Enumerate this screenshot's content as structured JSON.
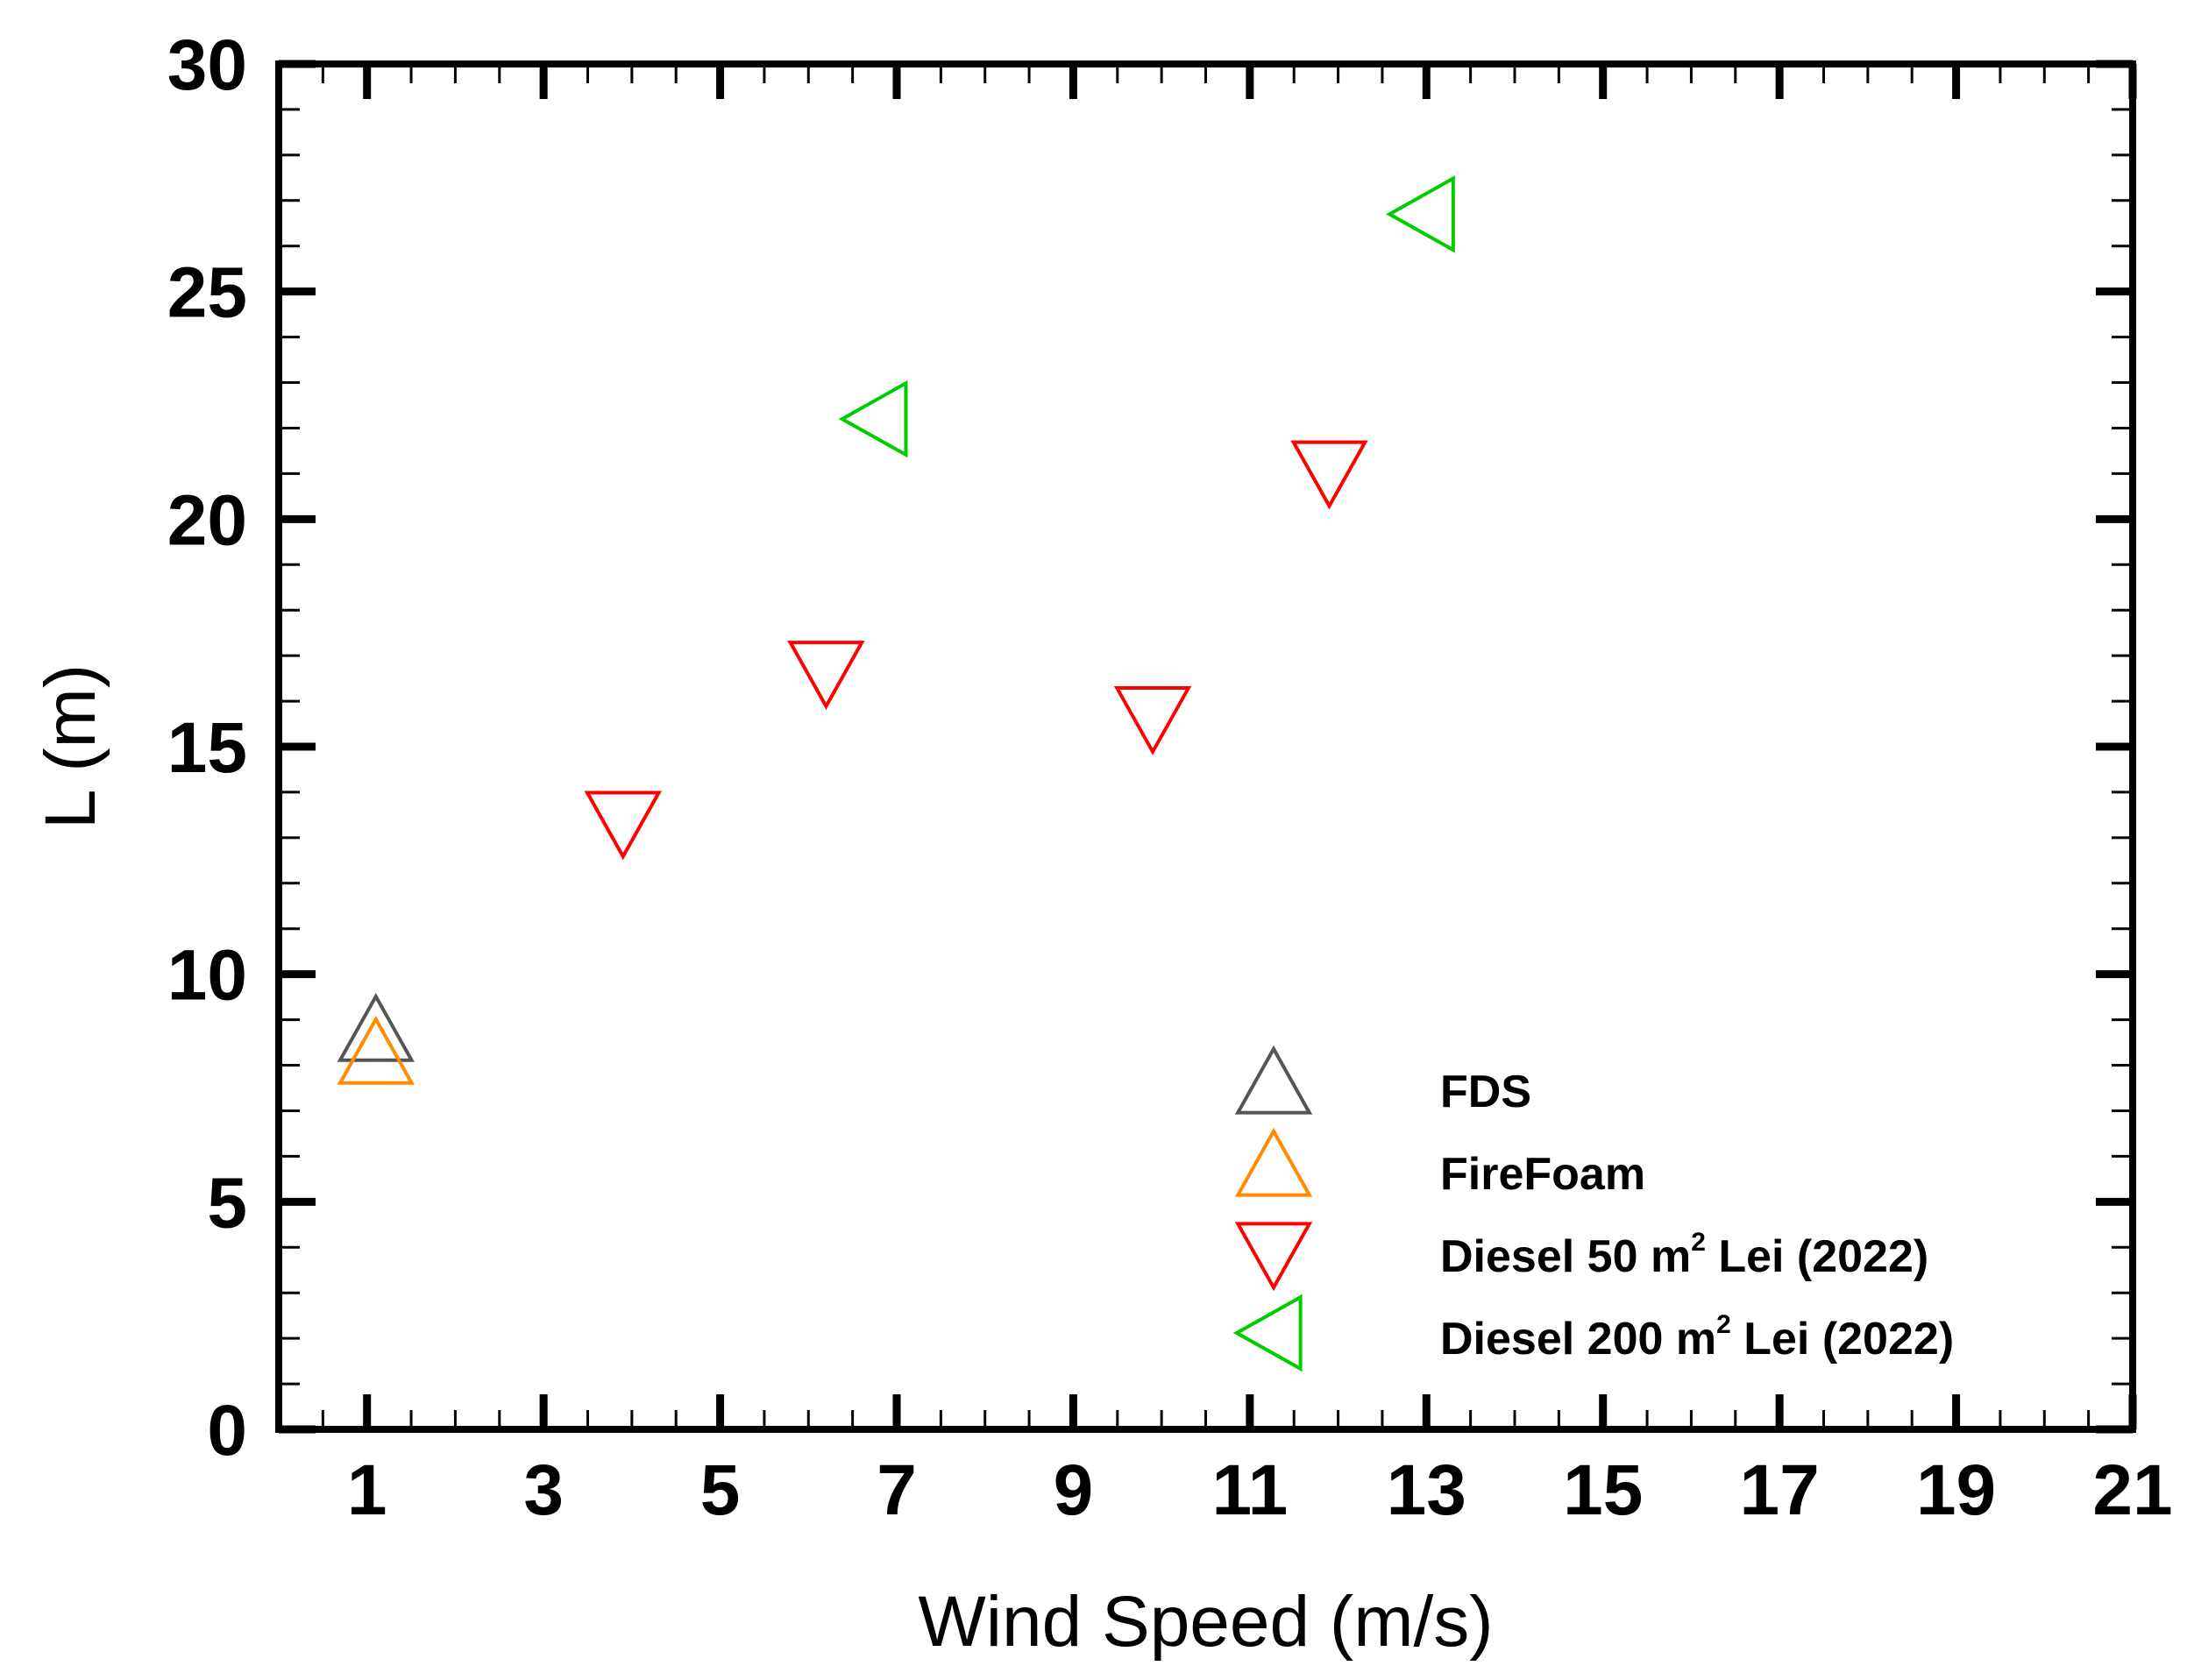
{
  "chart_data": {
    "type": "scatter",
    "xlabel": "Wind Speed (m/s)",
    "ylabel": "L (m)",
    "xlim": [
      0,
      21
    ],
    "ylim": [
      0,
      30
    ],
    "x_ticks": [
      1,
      3,
      5,
      7,
      9,
      11,
      13,
      15,
      17,
      19,
      21
    ],
    "y_ticks": [
      0,
      5,
      10,
      15,
      20,
      25,
      30
    ],
    "x_minor_step": 0.5,
    "y_minor_step": 1,
    "grid": false,
    "legend_position": "bottom-right",
    "series": [
      {
        "name": "FDS",
        "marker": "triangle-up",
        "color": "#555555",
        "points": [
          {
            "x": 1.1,
            "y": 8.7
          }
        ]
      },
      {
        "name": "FireFoam",
        "marker": "triangle-up",
        "color": "#FF8C00",
        "points": [
          {
            "x": 1.1,
            "y": 8.2
          }
        ]
      },
      {
        "name": "Diesel 50 m2 Lei (2022)",
        "label_parts": {
          "before": "Diesel 50 m",
          "sup": "2",
          "after": " Lei (2022)"
        },
        "marker": "triangle-down",
        "color": "#FF0000",
        "points": [
          {
            "x": 3.9,
            "y": 13.4
          },
          {
            "x": 6.2,
            "y": 16.7
          },
          {
            "x": 9.9,
            "y": 15.7
          },
          {
            "x": 11.9,
            "y": 21.1
          }
        ]
      },
      {
        "name": "Diesel 200 m2 Lei (2022)",
        "label_parts": {
          "before": "Diesel 200 m",
          "sup": "2",
          "after": " Lei (2022)"
        },
        "marker": "triangle-left",
        "color": "#00CC00",
        "points": [
          {
            "x": 6.8,
            "y": 22.2
          },
          {
            "x": 13.0,
            "y": 26.7
          }
        ]
      }
    ]
  }
}
